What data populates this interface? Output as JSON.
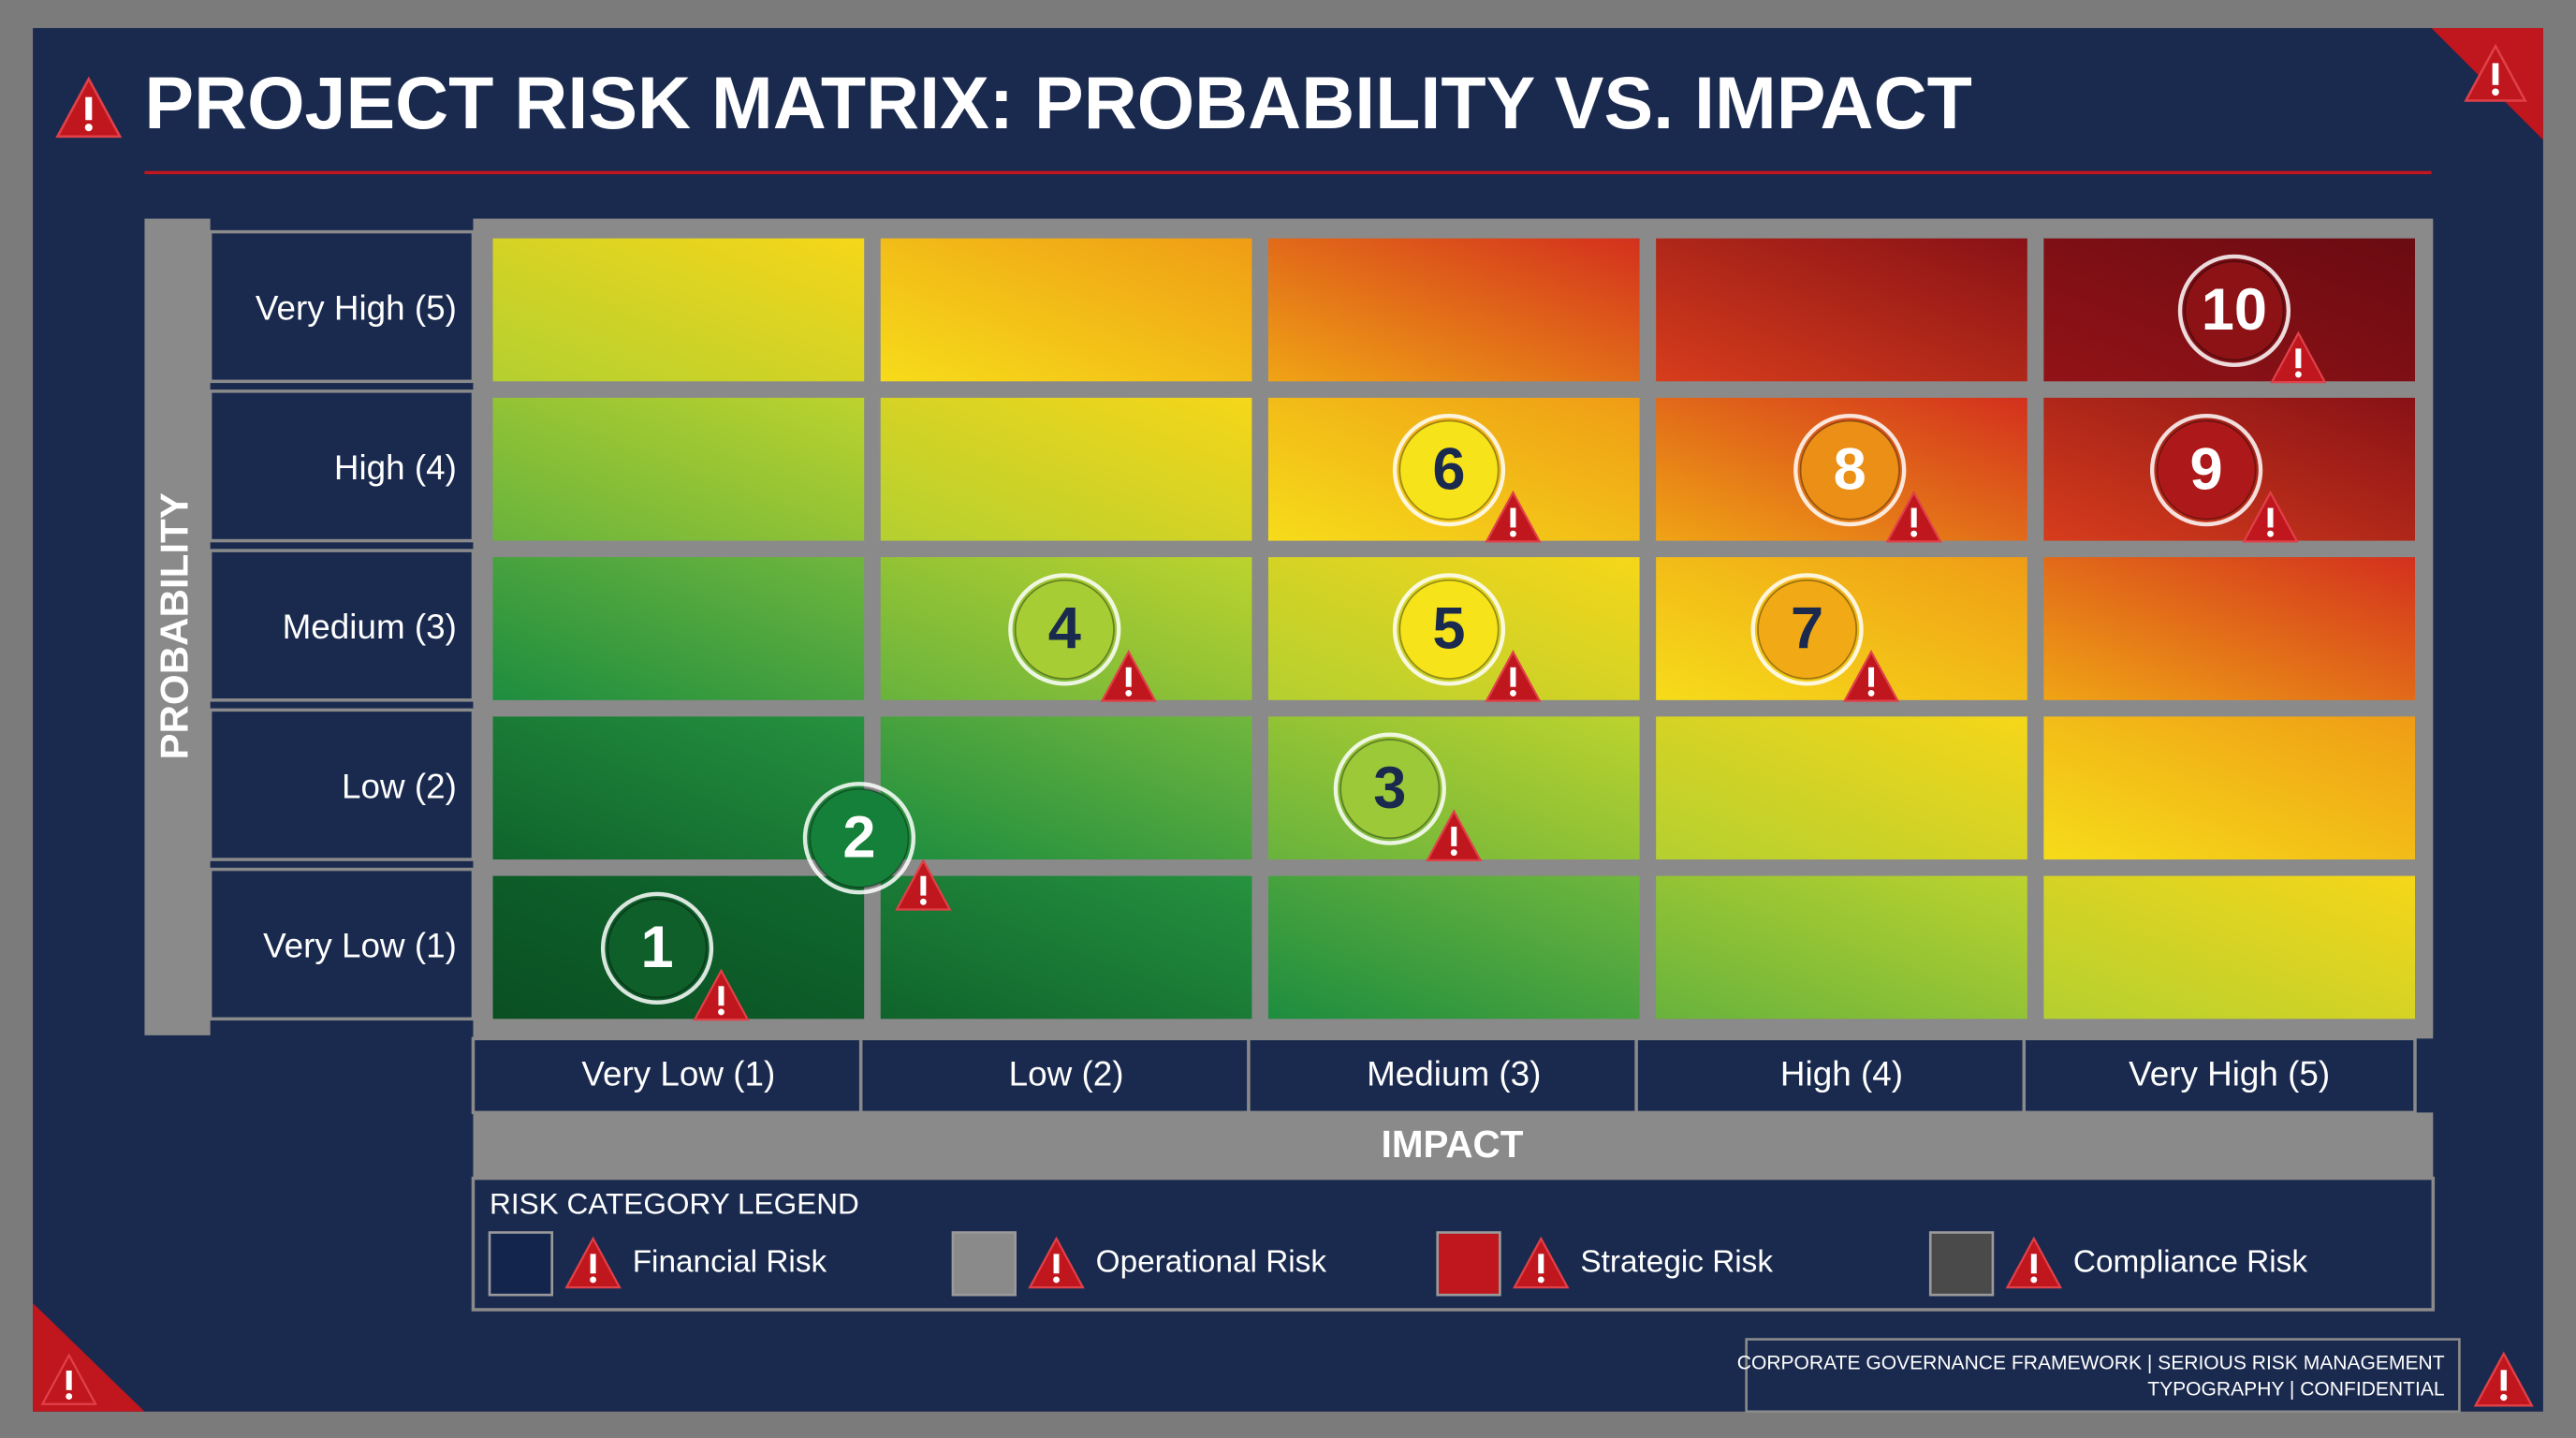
{
  "header": {
    "title": "PROJECT RISK MATRIX: PROBABILITY VS. IMPACT"
  },
  "matrix": {
    "y_axis_label": "PROBABILITY",
    "rows": [
      "Very High (5)",
      "High (4)",
      "Medium (3)",
      "Low (2)",
      "Very Low (1)"
    ],
    "columns": [
      "Very Low (1)",
      "Low (2)",
      "Medium (3)",
      "High (4)",
      "Very High (5)"
    ],
    "x_axis_label": "IMPACT",
    "risks": [
      "1",
      "2",
      "3",
      "4",
      "5",
      "6",
      "7",
      "8",
      "9",
      "10"
    ]
  },
  "legend": {
    "title": "RISK CATEGORY LEGEND",
    "items": [
      {
        "label": "Financial Risk",
        "color": "#14254d"
      },
      {
        "label": "Operational Risk",
        "color": "#8a8a8a"
      },
      {
        "label": "Strategic Risk",
        "color": "#c0161e"
      },
      {
        "label": "Compliance Risk",
        "color": "#4a4a4a"
      }
    ]
  },
  "footer": {
    "lines": [
      "CORPORATE GOVERNANCE FRAMEWORK | SERIOUS RISK MANAGEMENT",
      "TYPOGRAPHY | CONFIDENTIAL"
    ]
  }
}
